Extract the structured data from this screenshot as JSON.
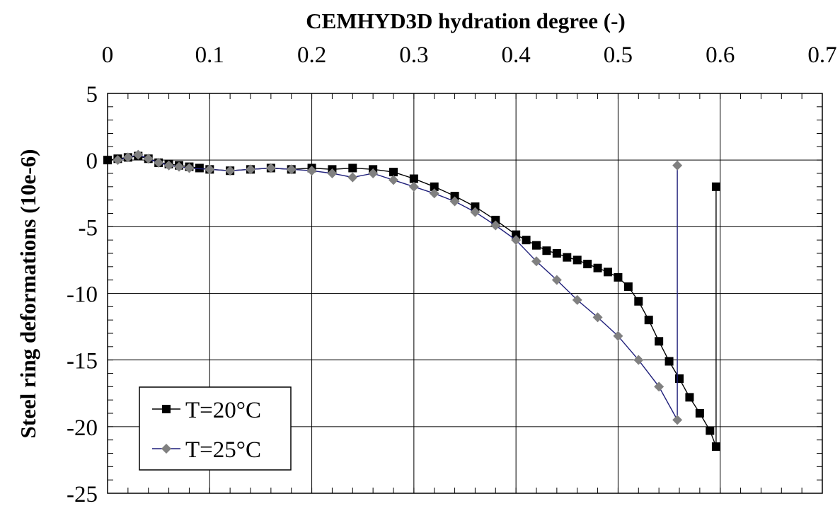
{
  "chart_data": {
    "type": "scatter",
    "title": "",
    "xlabel": "CEMHYD3D hydration degree (-)",
    "ylabel": "Steel ring deformations (10e-6)",
    "x_axis_position": "top",
    "xlim": [
      0,
      0.7
    ],
    "ylim": [
      -25,
      5
    ],
    "xticks": [
      "0",
      "0.1",
      "0.2",
      "0.3",
      "0.4",
      "0.5",
      "0.6",
      "0.7"
    ],
    "yticks": [
      "5",
      "0",
      "-5",
      "-10",
      "-15",
      "-20",
      "-25"
    ],
    "grid": true,
    "legend_position": "bottom-left",
    "series": [
      {
        "name": "T=20°C",
        "color": "#000000",
        "line_color": "#000000",
        "marker": "square",
        "x": [
          0,
          0.01,
          0.02,
          0.03,
          0.04,
          0.05,
          0.06,
          0.07,
          0.08,
          0.09,
          0.1,
          0.12,
          0.14,
          0.16,
          0.18,
          0.2,
          0.22,
          0.24,
          0.26,
          0.28,
          0.3,
          0.32,
          0.34,
          0.36,
          0.38,
          0.4,
          0.41,
          0.42,
          0.43,
          0.44,
          0.45,
          0.46,
          0.47,
          0.48,
          0.49,
          0.5,
          0.51,
          0.52,
          0.53,
          0.54,
          0.55,
          0.56,
          0.57,
          0.58,
          0.59,
          0.596,
          0.596
        ],
        "y": [
          0,
          0.1,
          0.2,
          0.3,
          0.1,
          -0.2,
          -0.3,
          -0.4,
          -0.5,
          -0.6,
          -0.7,
          -0.8,
          -0.7,
          -0.6,
          -0.7,
          -0.6,
          -0.7,
          -0.6,
          -0.7,
          -0.9,
          -1.4,
          -2.0,
          -2.7,
          -3.5,
          -4.5,
          -5.6,
          -6.0,
          -6.4,
          -6.8,
          -7.0,
          -7.3,
          -7.5,
          -7.8,
          -8.1,
          -8.4,
          -8.8,
          -9.5,
          -10.6,
          -12.0,
          -13.6,
          -15.1,
          -16.4,
          -17.8,
          -19.0,
          -20.3,
          -21.5,
          -2.0
        ]
      },
      {
        "name": "T=25°C",
        "color": "#808080",
        "line_color": "#1f1f7a",
        "marker": "diamond",
        "x": [
          0.01,
          0.02,
          0.03,
          0.04,
          0.05,
          0.06,
          0.07,
          0.08,
          0.1,
          0.12,
          0.14,
          0.16,
          0.18,
          0.2,
          0.22,
          0.24,
          0.26,
          0.28,
          0.3,
          0.32,
          0.34,
          0.36,
          0.38,
          0.4,
          0.42,
          0.44,
          0.46,
          0.48,
          0.5,
          0.52,
          0.54,
          0.558,
          0.558
        ],
        "y": [
          0,
          0.2,
          0.4,
          0.1,
          -0.2,
          -0.4,
          -0.5,
          -0.6,
          -0.7,
          -0.8,
          -0.7,
          -0.6,
          -0.7,
          -0.8,
          -1.0,
          -1.3,
          -1.0,
          -1.5,
          -2.0,
          -2.5,
          -3.1,
          -3.9,
          -4.9,
          -6.0,
          -7.6,
          -9.0,
          -10.5,
          -11.8,
          -13.2,
          -15.0,
          -17.0,
          -19.5,
          -0.4
        ]
      }
    ]
  }
}
